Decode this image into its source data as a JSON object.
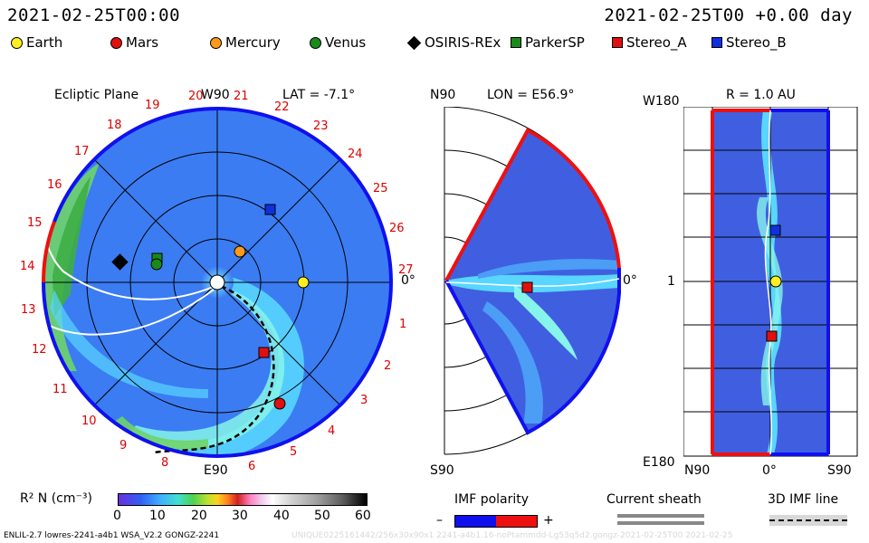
{
  "header": {
    "datetime_left": "2021-02-25T00:00",
    "datetime_right": "2021-02-25T00 +0.00 day"
  },
  "legend": [
    {
      "label": "Earth",
      "shape": "circle",
      "color": "#ffee22"
    },
    {
      "label": "Mars",
      "shape": "circle",
      "color": "#e01010"
    },
    {
      "label": "Mercury",
      "shape": "circle",
      "color": "#ff9a1a"
    },
    {
      "label": "Venus",
      "shape": "circle",
      "color": "#1a8a1a"
    },
    {
      "label": "OSIRIS-REx",
      "shape": "diamond",
      "color": "#000000"
    },
    {
      "label": "ParkerSP",
      "shape": "square",
      "color": "#1a8a1a"
    },
    {
      "label": "Stereo_A",
      "shape": "square",
      "color": "#e01010"
    },
    {
      "label": "Stereo_B",
      "shape": "square",
      "color": "#1030e0"
    }
  ],
  "panel_ecliptic": {
    "title": "Ecliptic Plane",
    "top_label": "W90",
    "bottom_label": "E90",
    "right_label": "0°",
    "lat": "LAT = -7.1°",
    "tick_numbers": [
      "1",
      "2",
      "3",
      "4",
      "5",
      "6",
      "8",
      "9",
      "10",
      "11",
      "12",
      "13",
      "14",
      "15",
      "16",
      "17",
      "18",
      "19",
      "20",
      "21",
      "22",
      "23",
      "24",
      "25",
      "26",
      "27"
    ]
  },
  "panel_meridional": {
    "lon": "LON = E56.9°",
    "top_label": "N90",
    "bottom_label": "S90",
    "right_label": "0°"
  },
  "panel_radial": {
    "title": "R = 1.0 AU",
    "y_top": "W180",
    "y_mid": "1",
    "y_bottom": "E180",
    "x_left": "N90",
    "x_mid": "0°",
    "x_right": "S90"
  },
  "colorbar": {
    "label": "R² N (cm⁻³)",
    "ticks": [
      "0",
      "10",
      "20",
      "30",
      "40",
      "50",
      "60"
    ]
  },
  "imf_polarity": {
    "label": "IMF polarity",
    "minus": "–",
    "plus": "+"
  },
  "current_sheath": {
    "label": "Current sheath"
  },
  "imf_line": {
    "label": "3D IMF line"
  },
  "footer": {
    "left": "ENLIL-2.7 lowres-2241-a4b1 WSA_V2.2 GONGZ-2241",
    "right": "UNIQUE0225161442/256x30x90x1 2241-a4b1.16-noPtammdd-Lg53q5d2.gongz-2021-02-25T00   2021-02-25"
  },
  "colors": {
    "blue_edge": "#1010ee",
    "red_edge": "#ee1010",
    "bg_blue": "#3b7cf2"
  }
}
